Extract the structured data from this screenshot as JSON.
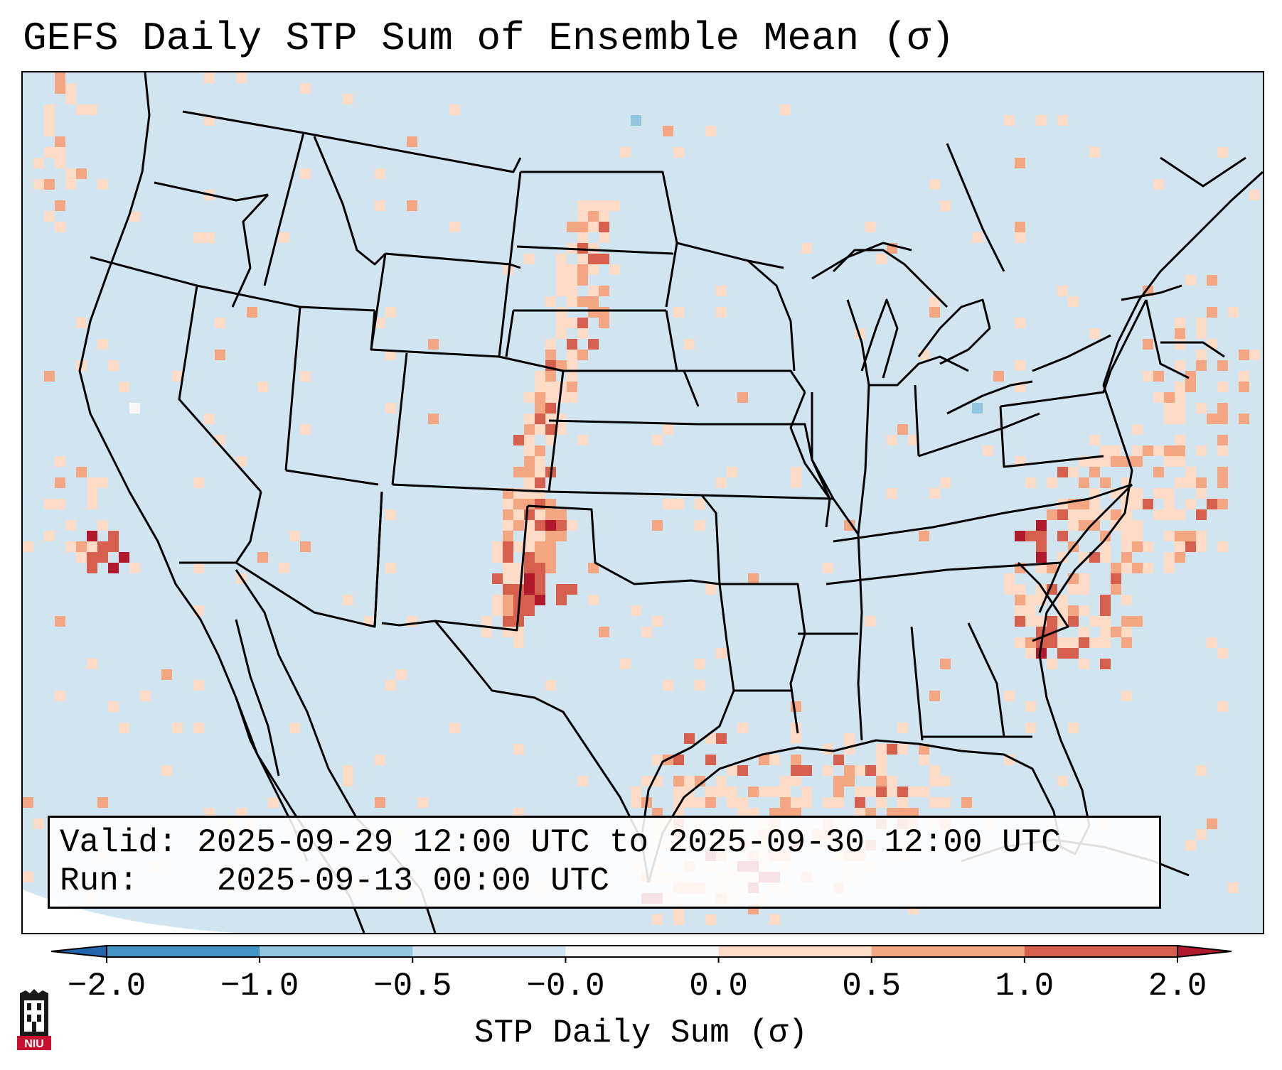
{
  "title": "GEFS Daily STP Sum of Ensemble Mean (σ)",
  "info": {
    "valid_label": "Valid:",
    "valid_value": "2025-09-29 12:00 UTC to 2025-09-30 12:00 UTC",
    "run_label": "Run:",
    "run_value": "2025-09-13 00:00 UTC"
  },
  "colorbar": {
    "label": "STP Daily Sum (σ)",
    "ticks": [
      "−2.0",
      "−1.0",
      "−0.5",
      "−0.0",
      "0.0",
      "0.5",
      "1.0",
      "2.0"
    ],
    "colors": [
      "#4393c3",
      "#92c5de",
      "#d1e5f0",
      "#f7f7f7",
      "#fddbc7",
      "#f4a582",
      "#d6604d"
    ],
    "extend_low_color": "#2166ac",
    "extend_high_color": "#b2182b"
  },
  "map": {
    "region": "Contiguous United States",
    "background_color": "#d1e5f0",
    "cell_colors": {
      "light": "#fddbc7",
      "medium": "#f4a582",
      "strong": "#d6604d",
      "extreme": "#b2182b",
      "neutral": "#f7f7f7",
      "negative": "#92c5de"
    }
  },
  "logo": {
    "text": "NIU"
  }
}
